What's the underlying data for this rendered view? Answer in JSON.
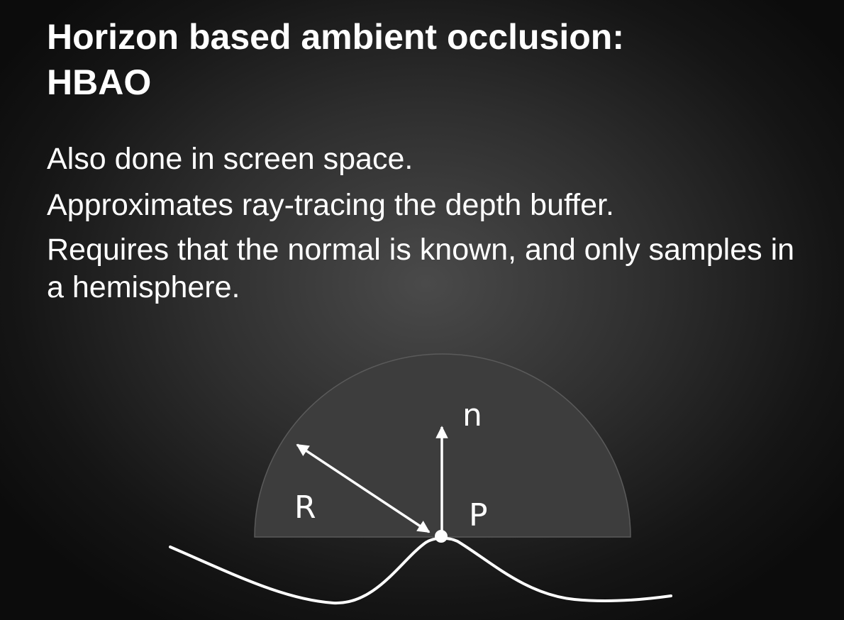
{
  "title": {
    "line1": "Horizon based ambient occlusion:",
    "line2": "HBAO"
  },
  "bullets": [
    "Also done in screen space.",
    "Approximates ray-tracing the depth buffer.",
    "Requires that the normal is known, and only samples in a hemisphere."
  ],
  "diagram": {
    "label_n": "n",
    "label_r": "R",
    "label_p": "P",
    "hemisphere_fill": "#3d3d3d",
    "stroke_color": "#ffffff"
  }
}
